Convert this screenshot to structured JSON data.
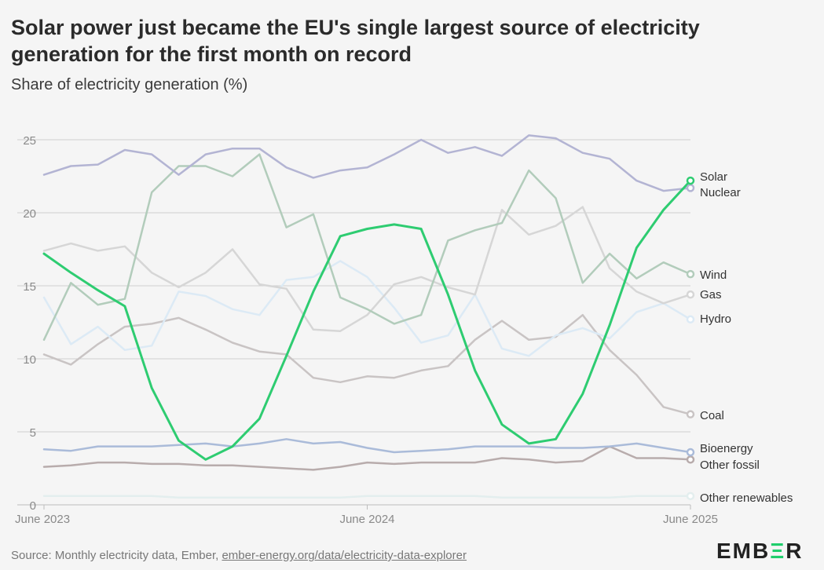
{
  "title": "Solar power just became the EU's single largest source of electricity generation for the first month on record",
  "subtitle": "Share of electricity generation (%)",
  "source": {
    "prefix": "Source: Monthly electricity data, Ember, ",
    "link": "ember-energy.org/data/electricity-data-explorer"
  },
  "logo": {
    "left": "EMB",
    "mid": "Ξ",
    "right": "R"
  },
  "chart_data": {
    "type": "line",
    "title": "Solar power just became the EU's single largest source of electricity generation for the first month on record",
    "ylabel": "Share of electricity generation (%)",
    "xlabel": "",
    "ylim": [
      0,
      25
    ],
    "yticks": [
      0,
      5,
      10,
      15,
      20,
      25
    ],
    "x": [
      "Jun 2023",
      "Jul 2023",
      "Aug 2023",
      "Sep 2023",
      "Oct 2023",
      "Nov 2023",
      "Dec 2023",
      "Jan 2024",
      "Feb 2024",
      "Mar 2024",
      "Apr 2024",
      "May 2024",
      "Jun 2024",
      "Jul 2024",
      "Aug 2024",
      "Sep 2024",
      "Oct 2024",
      "Nov 2024",
      "Dec 2024",
      "Jan 2025",
      "Feb 2025",
      "Mar 2025",
      "Apr 2025",
      "May 2025",
      "Jun 2025"
    ],
    "xtick_labels": [
      {
        "index": 0,
        "label": "June 2023"
      },
      {
        "index": 12,
        "label": "June 2024"
      },
      {
        "index": 24,
        "label": "June 2025"
      }
    ],
    "grid": true,
    "series": [
      {
        "name": "Solar",
        "color": "#2ecc71",
        "width": 3,
        "values": [
          17.2,
          15.9,
          14.7,
          13.6,
          8.0,
          4.4,
          3.1,
          4.0,
          5.9,
          10.2,
          14.6,
          18.4,
          18.9,
          19.2,
          18.9,
          14.4,
          9.2,
          5.5,
          4.2,
          4.5,
          7.6,
          12.3,
          17.6,
          20.2,
          22.2
        ]
      },
      {
        "name": "Nuclear",
        "color": "#b3b4d3",
        "width": 2.5,
        "values": [
          22.6,
          23.2,
          23.3,
          24.3,
          24.0,
          22.6,
          24.0,
          24.4,
          24.4,
          23.1,
          22.4,
          22.9,
          23.1,
          24.0,
          25.0,
          24.1,
          24.5,
          23.9,
          25.3,
          25.1,
          24.1,
          23.7,
          22.2,
          21.5,
          21.7
        ]
      },
      {
        "name": "Wind",
        "color": "#b2ccbb",
        "width": 2.5,
        "values": [
          11.3,
          15.2,
          13.7,
          14.1,
          21.4,
          23.2,
          23.2,
          22.5,
          24.0,
          19.0,
          19.9,
          14.2,
          13.4,
          12.4,
          13.0,
          18.1,
          18.8,
          19.3,
          22.9,
          21.0,
          15.2,
          17.2,
          15.5,
          16.6,
          15.8
        ]
      },
      {
        "name": "Gas",
        "color": "#d6d6d6",
        "width": 2.5,
        "values": [
          17.4,
          17.9,
          17.4,
          17.7,
          15.9,
          14.9,
          15.9,
          17.5,
          15.1,
          14.8,
          12.0,
          11.9,
          13.0,
          15.1,
          15.6,
          14.9,
          14.4,
          20.2,
          18.5,
          19.1,
          20.4,
          16.2,
          14.6,
          13.8,
          14.4
        ]
      },
      {
        "name": "Hydro",
        "color": "#dceaf5",
        "width": 2.5,
        "values": [
          14.2,
          11.0,
          12.2,
          10.6,
          10.9,
          14.6,
          14.3,
          13.4,
          13.0,
          15.4,
          15.6,
          16.7,
          15.6,
          13.5,
          11.1,
          11.6,
          14.4,
          10.7,
          10.2,
          11.6,
          12.1,
          11.4,
          13.2,
          13.8,
          12.7
        ]
      },
      {
        "name": "Coal",
        "color": "#c9c4c4",
        "width": 2.5,
        "values": [
          10.3,
          9.6,
          11.0,
          12.2,
          12.4,
          12.8,
          12.0,
          11.1,
          10.5,
          10.3,
          8.7,
          8.4,
          8.8,
          8.7,
          9.2,
          9.5,
          11.3,
          12.6,
          11.3,
          11.5,
          13.0,
          10.6,
          8.9,
          6.7,
          6.2
        ]
      },
      {
        "name": "Bioenergy",
        "color": "#aabbd9",
        "width": 2.5,
        "values": [
          3.8,
          3.7,
          4.0,
          4.0,
          4.0,
          4.1,
          4.2,
          4.0,
          4.2,
          4.5,
          4.2,
          4.3,
          3.9,
          3.6,
          3.7,
          3.8,
          4.0,
          4.0,
          4.0,
          3.9,
          3.9,
          4.0,
          4.2,
          3.9,
          3.6
        ]
      },
      {
        "name": "Other fossil",
        "color": "#b8acac",
        "width": 2.5,
        "values": [
          2.6,
          2.7,
          2.9,
          2.9,
          2.8,
          2.8,
          2.7,
          2.7,
          2.6,
          2.5,
          2.4,
          2.6,
          2.9,
          2.8,
          2.9,
          2.9,
          2.9,
          3.2,
          3.1,
          2.9,
          3.0,
          4.0,
          3.2,
          3.2,
          3.1
        ]
      },
      {
        "name": "Other renewables",
        "color": "#e3eeee",
        "width": 2.5,
        "values": [
          0.6,
          0.6,
          0.6,
          0.6,
          0.6,
          0.5,
          0.5,
          0.5,
          0.5,
          0.5,
          0.5,
          0.5,
          0.6,
          0.6,
          0.6,
          0.6,
          0.6,
          0.5,
          0.5,
          0.5,
          0.5,
          0.5,
          0.6,
          0.6,
          0.6
        ]
      }
    ],
    "legend": [
      {
        "name": "Solar",
        "label": "Solar"
      },
      {
        "name": "Nuclear",
        "label": "Nuclear"
      },
      {
        "name": "Wind",
        "label": "Wind"
      },
      {
        "name": "Gas",
        "label": "Gas"
      },
      {
        "name": "Hydro",
        "label": "Hydro"
      },
      {
        "name": "Coal",
        "label": "Coal"
      },
      {
        "name": "Bioenergy",
        "label": "Bioenergy"
      },
      {
        "name": "Other fossil",
        "label": "Other fossil"
      },
      {
        "name": "Other renewables",
        "label": "Other renewables"
      }
    ],
    "legend_placement": "right, at line ends"
  }
}
